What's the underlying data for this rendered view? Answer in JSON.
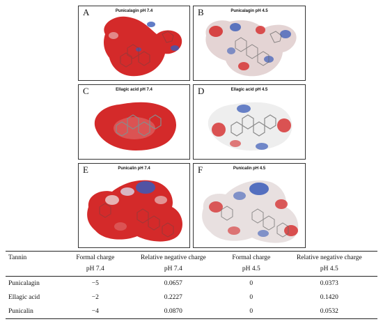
{
  "panels": [
    {
      "letter": "A",
      "caption": "Punicalagin pH 7.4"
    },
    {
      "letter": "B",
      "caption": "Punicalagin pH 4.5"
    },
    {
      "letter": "C",
      "caption": "Ellagic acid pH 7.4"
    },
    {
      "letter": "D",
      "caption": "Ellagic acid pH 4.5"
    },
    {
      "letter": "E",
      "caption": "Punicalin pH 7.4"
    },
    {
      "letter": "F",
      "caption": "Punicalin pH 4.5"
    }
  ],
  "colors": {
    "negative": "#d42a2a",
    "positive": "#3a5bb8",
    "neutral": "#eeeeee",
    "stick": "#8a8a8a"
  },
  "table": {
    "header_row1": [
      "Tannin",
      "Formal charge",
      "Relative negative charge",
      "Formal charge",
      "Relative negative charge"
    ],
    "header_row2": [
      "",
      "pH 7.4",
      "pH 7.4",
      "pH 4.5",
      "pH 4.5"
    ],
    "rows": [
      [
        "Punicalagin",
        "−5",
        "0.0657",
        "0",
        "0.0373"
      ],
      [
        "Ellagic acid",
        "−2",
        "0.2227",
        "0",
        "0.1420"
      ],
      [
        "Punicalin",
        "−4",
        "0.0870",
        "0",
        "0.0532"
      ]
    ]
  }
}
